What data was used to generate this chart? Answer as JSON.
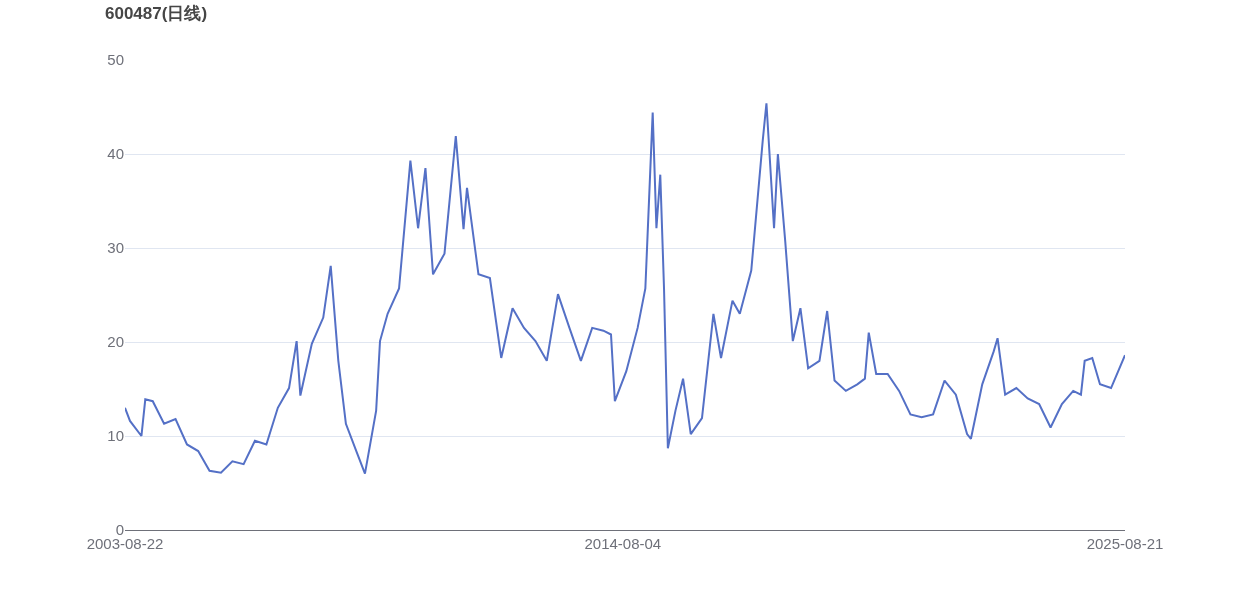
{
  "chart_data": {
    "type": "line",
    "title": "600487(日线)",
    "x": [
      "2003-08-22",
      "2003-10",
      "2004-01",
      "2004-02",
      "2004-04",
      "2004-07",
      "2004-10",
      "2005-01",
      "2005-04",
      "2005-07",
      "2005-10",
      "2006-01",
      "2006-04",
      "2006-07",
      "2006-10",
      "2007-01",
      "2007-04",
      "2007-06",
      "2007-07",
      "2007-10",
      "2008-01",
      "2008-03",
      "2008-05",
      "2008-07",
      "2008-10",
      "2008-12",
      "2009-03",
      "2009-04",
      "2009-06",
      "2009-09",
      "2009-12",
      "2010-02",
      "2010-04",
      "2010-06",
      "2010-09",
      "2010-12",
      "2011-02",
      "2011-03",
      "2011-06",
      "2011-09",
      "2011-12",
      "2012-03",
      "2012-06",
      "2012-09",
      "2012-12",
      "2013-03",
      "2013-06",
      "2013-09",
      "2013-12",
      "2014-03",
      "2014-05",
      "2014-06",
      "2014-09",
      "2014-12",
      "2015-02",
      "2015-04",
      "2015-05",
      "2015-06",
      "2015-07",
      "2015-08",
      "2015-10",
      "2015-12",
      "2016-02",
      "2016-05",
      "2016-08",
      "2016-10",
      "2017-01",
      "2017-03",
      "2017-06",
      "2017-09",
      "2017-10",
      "2017-12",
      "2018-01",
      "2018-03",
      "2018-05",
      "2018-07",
      "2018-09",
      "2018-12",
      "2019-02",
      "2019-04",
      "2019-07",
      "2019-10",
      "2019-12",
      "2020-01",
      "2020-03",
      "2020-06",
      "2020-09",
      "2020-12",
      "2021-03",
      "2021-06",
      "2021-09",
      "2021-12",
      "2022-03",
      "2022-04",
      "2022-07",
      "2022-10",
      "2022-11",
      "2023-01",
      "2023-04",
      "2023-07",
      "2023-10",
      "2024-01",
      "2024-04",
      "2024-07",
      "2024-09",
      "2024-10",
      "2024-12",
      "2025-02",
      "2025-05",
      "2025-08-21"
    ],
    "series": [
      {
        "color": "#5470c6",
        "values": [
          13.0,
          11.6,
          10.0,
          13.9,
          13.7,
          11.3,
          11.8,
          9.1,
          8.4,
          6.3,
          6.1,
          7.3,
          7.0,
          9.5,
          9.1,
          13.0,
          15.1,
          20.1,
          14.3,
          19.8,
          22.6,
          28.1,
          18.0,
          11.3,
          8.1,
          6.0,
          12.7,
          20.1,
          23.0,
          25.7,
          39.3,
          32.1,
          38.5,
          27.2,
          29.4,
          41.9,
          32.0,
          36.4,
          27.2,
          26.8,
          18.3,
          23.6,
          21.5,
          20.1,
          18.0,
          25.1,
          21.5,
          18.0,
          21.5,
          21.2,
          20.8,
          13.7,
          16.9,
          21.5,
          25.7,
          44.4,
          32.1,
          37.8,
          25.7,
          8.7,
          12.7,
          16.1,
          10.2,
          11.9,
          23.0,
          18.3,
          24.4,
          23.0,
          27.6,
          41.4,
          45.4,
          32.1,
          40.0,
          30.7,
          20.1,
          23.6,
          17.2,
          18.0,
          23.3,
          15.9,
          14.8,
          15.5,
          16.1,
          21.0,
          16.6,
          16.6,
          14.8,
          12.3,
          12.0,
          12.3,
          15.9,
          14.4,
          10.2,
          9.7,
          15.5,
          19.0,
          20.4,
          14.4,
          15.1,
          14.0,
          13.4,
          10.9,
          13.4,
          14.8,
          14.4,
          18.0,
          18.3,
          15.5,
          15.1,
          18.6
        ]
      }
    ],
    "xlim": [
      "2003-08-22",
      "2025-08-21"
    ],
    "xticks": [
      "2003-08-22",
      "2014-08-04",
      "2025-08-21"
    ],
    "ylim": [
      0,
      50
    ],
    "yticks": [
      0,
      10,
      20,
      30,
      40,
      50
    ],
    "grid": "y",
    "marker": "none",
    "line_style": "solid"
  }
}
